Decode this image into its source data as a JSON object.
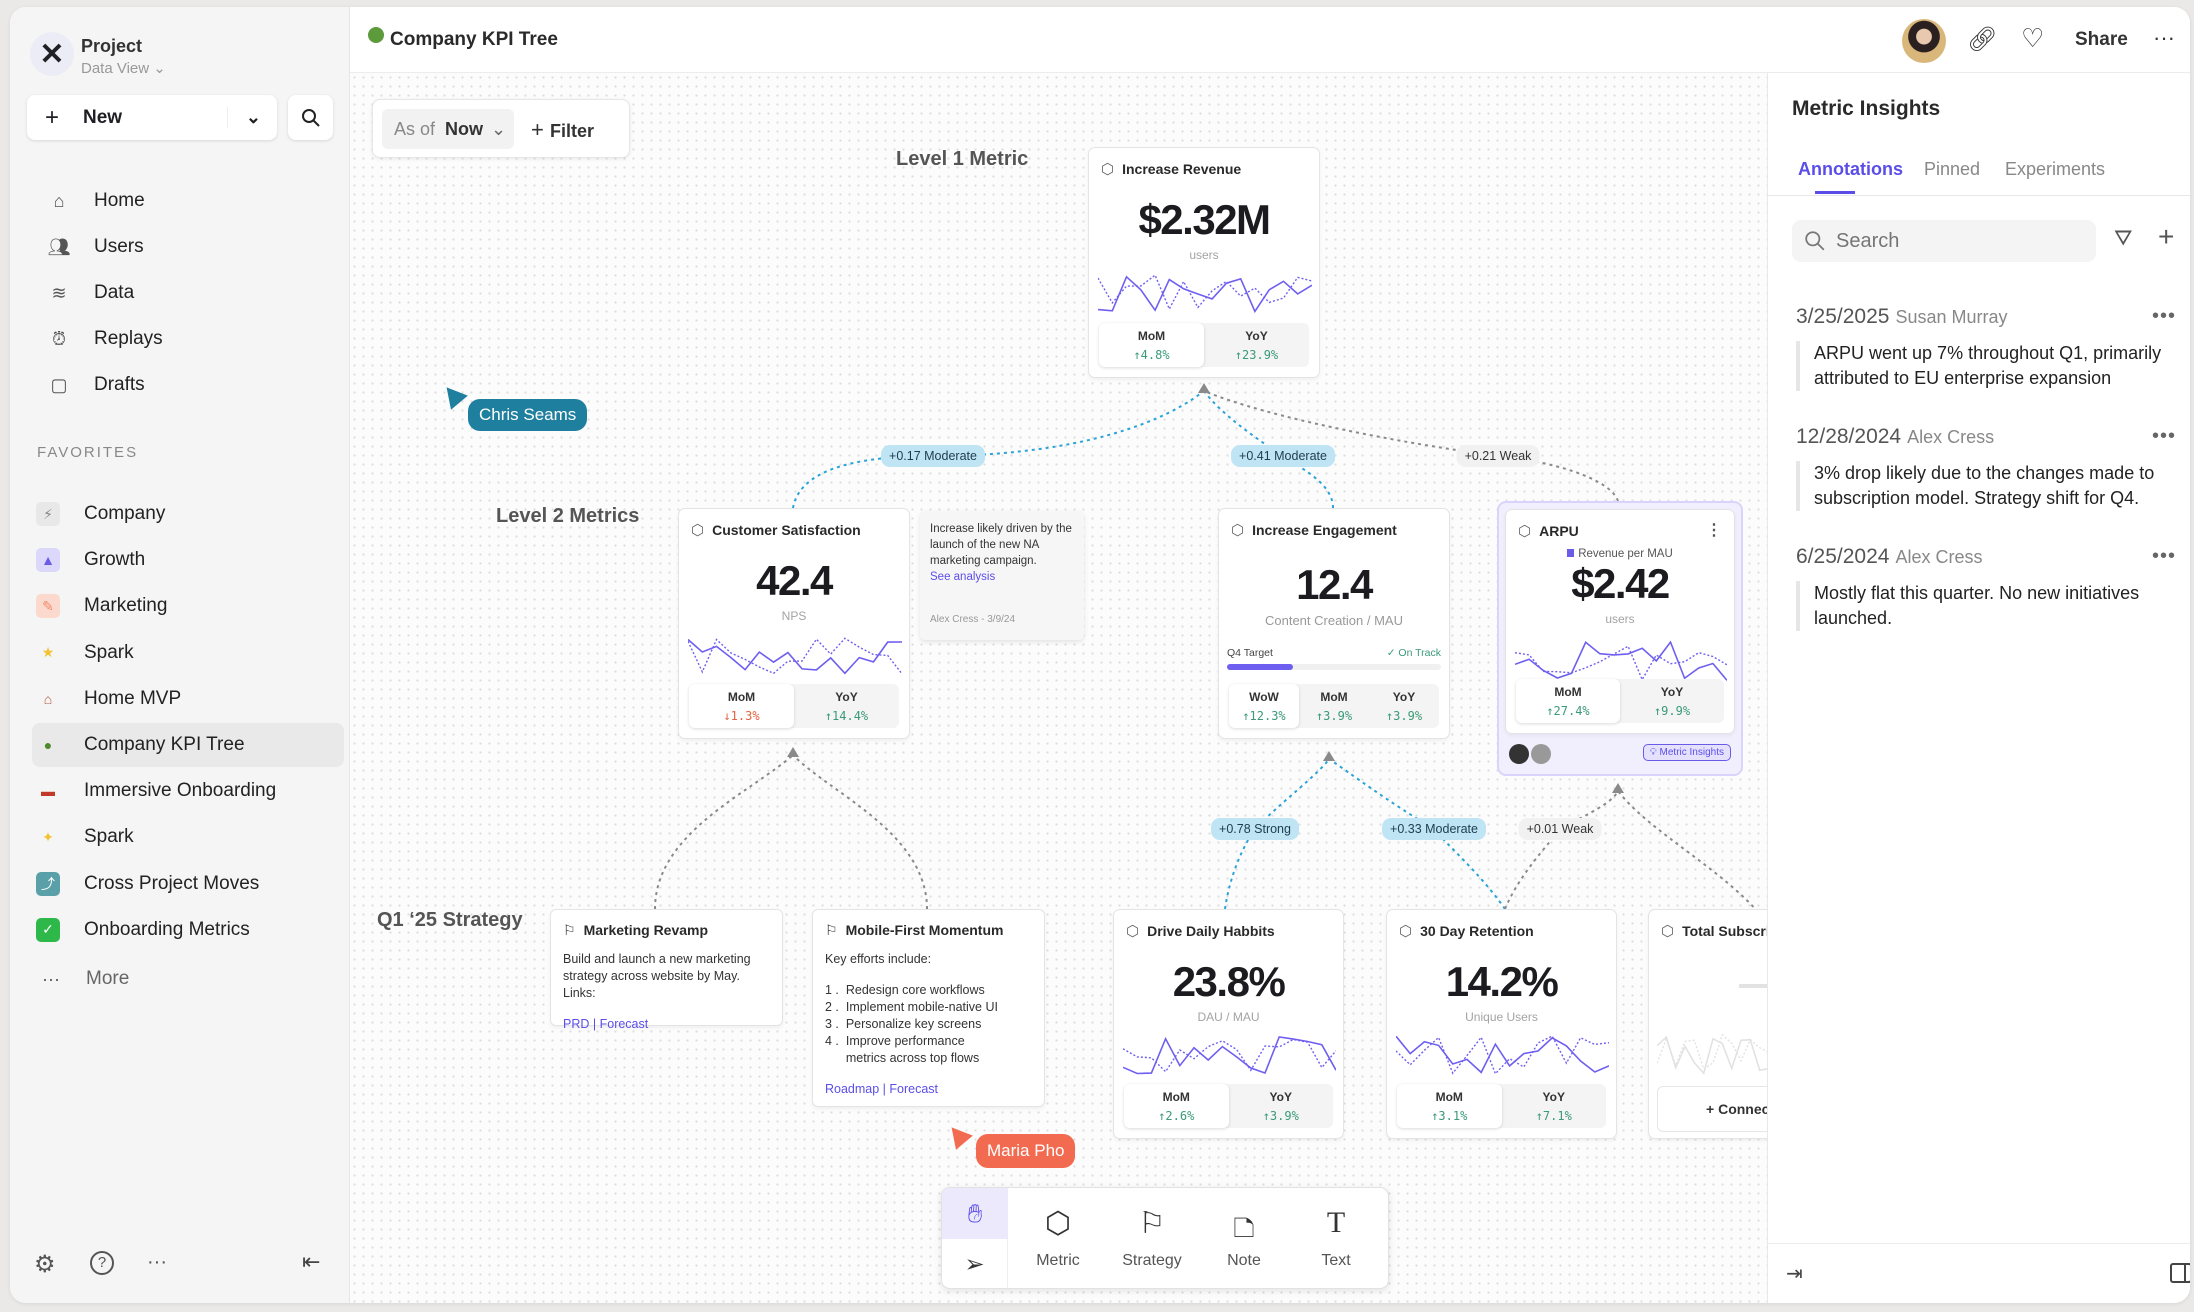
{
  "sidebar": {
    "project_name": "Project",
    "view_name": "Data View",
    "new_label": "New",
    "nav": [
      {
        "label": "Home",
        "icon": "home-icon"
      },
      {
        "label": "Users",
        "icon": "users-icon"
      },
      {
        "label": "Data",
        "icon": "database-icon"
      },
      {
        "label": "Replays",
        "icon": "alarm-clock-icon"
      },
      {
        "label": "Drafts",
        "icon": "document-icon"
      }
    ],
    "favorites_heading": "FAVORITES",
    "favorites": [
      {
        "label": "Company",
        "icon": "lightning-icon"
      },
      {
        "label": "Growth",
        "icon": "rocket-icon"
      },
      {
        "label": "Marketing",
        "icon": "sparkle-pattern-icon"
      },
      {
        "label": "Spark",
        "icon": "star-icon"
      },
      {
        "label": "Home MVP",
        "icon": "house-icon"
      },
      {
        "label": "Company KPI Tree",
        "icon": "tree-icon",
        "selected": true
      },
      {
        "label": "Immersive Onboarding",
        "icon": "train-icon"
      },
      {
        "label": "Spark",
        "icon": "sparkles-icon"
      },
      {
        "label": "Cross Project Moves",
        "icon": "arrow-box-icon"
      },
      {
        "label": "Onboarding Metrics",
        "icon": "checkbox-icon"
      }
    ],
    "more_label": "More"
  },
  "header": {
    "title": "Company KPI Tree",
    "share_label": "Share"
  },
  "canvas": {
    "as_of_label": "As of",
    "as_of_value": "Now",
    "filter_label": "Filter",
    "level_labels": [
      "Level 1 Metric",
      "Level 2 Metrics",
      "Q1 ‘25 Strategy"
    ],
    "metric_cards": [
      {
        "title": "Increase Revenue",
        "value": "$2.32M",
        "unit": "users",
        "stats": [
          {
            "label": "MoM",
            "value": "↑4.8%",
            "dir": "up"
          },
          {
            "label": "YoY",
            "value": "↑23.9%",
            "dir": "up"
          }
        ]
      },
      {
        "title": "Customer Satisfaction",
        "value": "42.4",
        "unit": "NPS",
        "stats": [
          {
            "label": "MoM",
            "value": "↓1.3%",
            "dir": "down"
          },
          {
            "label": "YoY",
            "value": "↑14.4%",
            "dir": "up"
          }
        ]
      },
      {
        "title": "Increase Engagement",
        "value": "12.4",
        "unit": "Content Creation / MAU",
        "target_label": "Q4 Target",
        "target_status": "✓ On Track",
        "target_progress": 0.31,
        "stats": [
          {
            "label": "WoW",
            "value": "↑12.3%",
            "dir": "up"
          },
          {
            "label": "MoM",
            "value": "↑3.9%",
            "dir": "up"
          },
          {
            "label": "YoY",
            "value": "↑3.9%",
            "dir": "up"
          }
        ]
      },
      {
        "title": "ARPU",
        "legend": "Revenue per MAU",
        "value": "$2.42",
        "unit": "users",
        "badge": "Metric Insights",
        "stats": [
          {
            "label": "MoM",
            "value": "↑27.4%",
            "dir": "up"
          },
          {
            "label": "YoY",
            "value": "↑9.9%",
            "dir": "up"
          }
        ]
      },
      {
        "title": "Drive Daily Habbits",
        "value": "23.8%",
        "unit": "DAU / MAU",
        "stats": [
          {
            "label": "MoM",
            "value": "↑2.6%",
            "dir": "up"
          },
          {
            "label": "YoY",
            "value": "↑3.9%",
            "dir": "up"
          }
        ]
      },
      {
        "title": "30 Day Retention",
        "value": "14.2%",
        "unit": "Unique Users",
        "stats": [
          {
            "label": "MoM",
            "value": "↑3.1%",
            "dir": "up"
          },
          {
            "label": "YoY",
            "value": "↑7.1%",
            "dir": "up"
          }
        ]
      },
      {
        "title": "Total Subscript",
        "connect_label": "Connec"
      }
    ],
    "note": {
      "text": "Increase likely driven by the launch of the new NA marketing campaign.",
      "link": "See analysis",
      "footer": "Alex Cress - 3/9/24"
    },
    "strategies": [
      {
        "title": "Marketing Revamp",
        "body": "Build and launch a new marketing strategy across website by May. Links:",
        "links": [
          "PRD",
          "Forecast"
        ]
      },
      {
        "title": "Mobile-First Momentum",
        "body": "Key efforts include:",
        "list": [
          "Redesign core workflows",
          "Implement mobile-native UI",
          "Personalize key screens",
          "Improve performance metrics across top flows"
        ],
        "links": [
          "Roadmap",
          "Forecast"
        ]
      }
    ],
    "connections": [
      {
        "label": "+0.17 Moderate",
        "strength": "moderate"
      },
      {
        "label": "+0.41 Moderate",
        "strength": "moderate"
      },
      {
        "label": "+0.21 Weak",
        "strength": "weak"
      },
      {
        "label": "+0.78 Strong",
        "strength": "strong"
      },
      {
        "label": "+0.33 Moderate",
        "strength": "moderate"
      },
      {
        "label": "+0.01 Weak",
        "strength": "weak"
      }
    ],
    "cursors": [
      {
        "name": "Chris Seams",
        "color": "#1f7f9e"
      },
      {
        "name": "Maria Pho",
        "color": "#f26a4f"
      }
    ],
    "toolbar": [
      "Metric",
      "Strategy",
      "Note",
      "Text"
    ]
  },
  "insights": {
    "title": "Metric Insights",
    "tabs": [
      "Annotations",
      "Pinned",
      "Experiments"
    ],
    "active_tab": "Annotations",
    "search_placeholder": "Search",
    "annotations": [
      {
        "date": "3/25/2025",
        "author": "Susan Murray",
        "text": "ARPU went up 7% throughout Q1, primarily attributed to EU enterprise expansion"
      },
      {
        "date": "12/28/2024",
        "author": "Alex Cress",
        "text": "3% drop likely due to the changes made to subscription model. Strategy shift for Q4."
      },
      {
        "date": "6/25/2024",
        "author": "Alex Cress",
        "text": "Mostly flat this quarter. No new initiatives launched."
      }
    ]
  },
  "colors": {
    "accent": "#5b4ee8",
    "sparkline": "#6f5ff0",
    "up": "#3a9a78",
    "down": "#e5623e",
    "strong_link": "#2aa3d8"
  }
}
